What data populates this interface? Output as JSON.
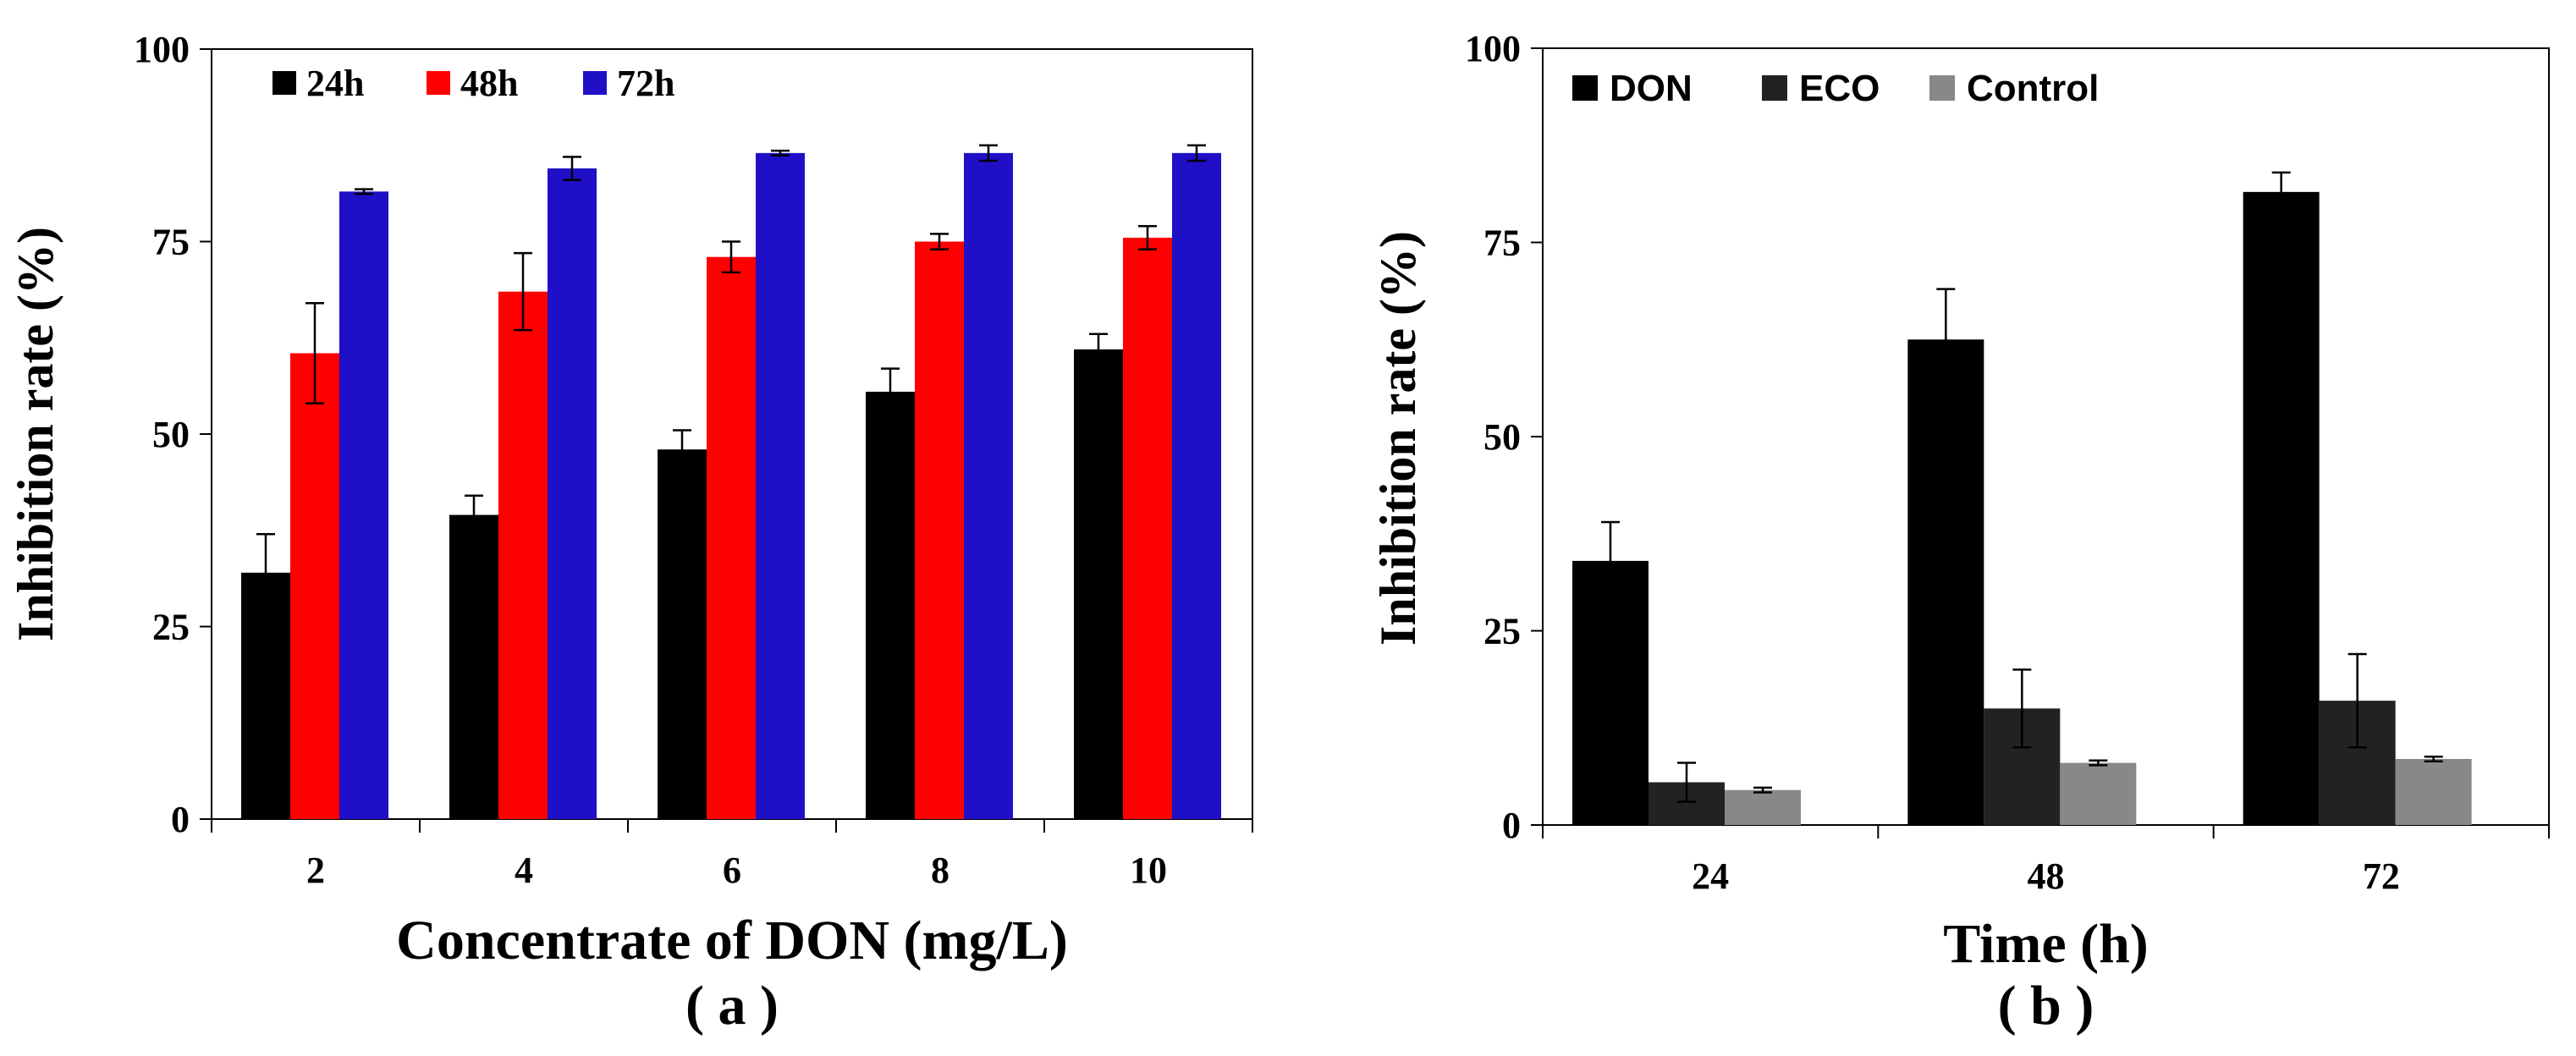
{
  "chart_data": [
    {
      "type": "bar",
      "panel_label": "( a )",
      "title": "",
      "xlabel": "Concentrate of  DON (mg/L)",
      "ylabel": "Inhibition rate (%)",
      "ylim": [
        0,
        100
      ],
      "yticks": [
        "0",
        "25",
        "50",
        "75",
        "100"
      ],
      "categories": [
        "2",
        "4",
        "6",
        "8",
        "10"
      ],
      "legend_position": "top-left",
      "series": [
        {
          "name": "24h",
          "color": "#000000",
          "values": [
            32,
            39.5,
            48,
            55.5,
            61
          ],
          "errors": [
            5,
            2.5,
            2.5,
            3,
            2
          ]
        },
        {
          "name": "48h",
          "color": "#ff0000",
          "values": [
            60.5,
            68.5,
            73,
            75,
            75.5
          ],
          "errors": [
            6.5,
            5,
            2,
            1,
            1.5
          ]
        },
        {
          "name": "72h",
          "color": "#1f10c8",
          "values": [
            81.5,
            84.5,
            86.5,
            86.5,
            86.5
          ],
          "errors": [
            0.3,
            1.5,
            0.3,
            1,
            1
          ]
        }
      ]
    },
    {
      "type": "bar",
      "panel_label": "( b )",
      "title": "",
      "xlabel": "Time (h)",
      "ylabel": "Inhibition rate (%)",
      "ylim": [
        0,
        100
      ],
      "yticks": [
        "0",
        "25",
        "50",
        "75",
        "100"
      ],
      "categories": [
        "24",
        "48",
        "72"
      ],
      "legend_position": "top-left",
      "series": [
        {
          "name": "DON",
          "color": "#000000",
          "values": [
            34,
            62.5,
            81.5
          ],
          "errors": [
            5,
            6.5,
            2.5
          ]
        },
        {
          "name": "ECO",
          "color": "#222222",
          "values": [
            5.5,
            15,
            16
          ],
          "errors": [
            2.5,
            5,
            6
          ]
        },
        {
          "name": "Control",
          "color": "#888888",
          "values": [
            4.5,
            8,
            8.5
          ],
          "errors": [
            0.3,
            0.3,
            0.3
          ]
        }
      ]
    }
  ]
}
